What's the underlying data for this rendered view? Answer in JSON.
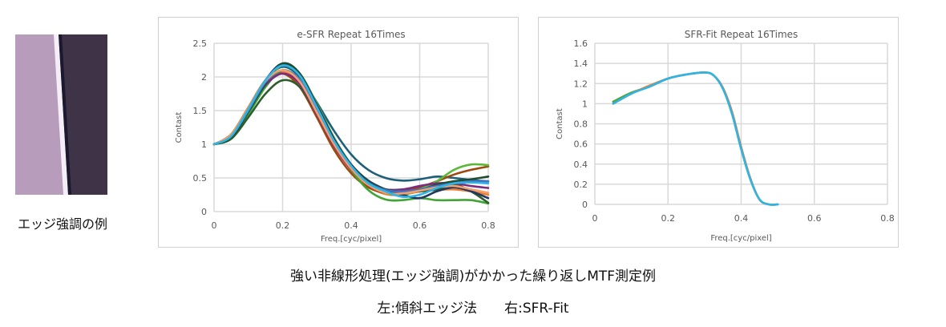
{
  "sample": {
    "label": "エッジ強調の例",
    "colors": {
      "light": "#b79dbb",
      "dark": "#3e3347",
      "edge": "#f4eef6"
    }
  },
  "captions": {
    "line1": "強い非線形処理(エッジ強調)がかかった繰り返しMTF測定例",
    "line2": "左:傾斜エッジ法　　右:SFR-Fit"
  },
  "chart_data": [
    {
      "type": "line",
      "title": "e-SFR Repeat 16Times",
      "xlabel": "Freq.[cyc/pixel]",
      "ylabel": "Contast",
      "xlim": [
        0,
        0.8
      ],
      "ylim": [
        0,
        2.5
      ],
      "xticks": [
        "0",
        "0.2",
        "0.4",
        "0.6",
        "0.8"
      ],
      "yticks": [
        "0",
        "0.5",
        "1",
        "1.5",
        "2",
        "2.5"
      ],
      "grid": true,
      "x": [
        0,
        0.05,
        0.1,
        0.15,
        0.2,
        0.25,
        0.3,
        0.35,
        0.4,
        0.45,
        0.5,
        0.55,
        0.6,
        0.65,
        0.7,
        0.75,
        0.8
      ],
      "series": [
        {
          "color": "#1f5f7a",
          "values": [
            1,
            1.12,
            1.5,
            1.95,
            2.15,
            2.0,
            1.62,
            1.2,
            0.85,
            0.62,
            0.5,
            0.46,
            0.48,
            0.52,
            0.5,
            0.47,
            0.45
          ]
        },
        {
          "color": "#ed7d31",
          "values": [
            1,
            1.15,
            1.55,
            1.95,
            2.08,
            1.9,
            1.45,
            0.98,
            0.62,
            0.38,
            0.26,
            0.25,
            0.3,
            0.32,
            0.33,
            0.3,
            0.25
          ]
        },
        {
          "color": "#9e480e",
          "values": [
            1,
            1.13,
            1.52,
            1.93,
            2.05,
            1.85,
            1.4,
            0.92,
            0.57,
            0.36,
            0.28,
            0.3,
            0.36,
            0.45,
            0.55,
            0.62,
            0.67
          ]
        },
        {
          "color": "#5cb83a",
          "values": [
            1,
            1.1,
            1.45,
            1.88,
            2.18,
            2.05,
            1.6,
            1.1,
            0.7,
            0.42,
            0.28,
            0.25,
            0.33,
            0.45,
            0.62,
            0.7,
            0.69
          ]
        },
        {
          "color": "#3fa535",
          "values": [
            1,
            1.1,
            1.45,
            1.85,
            2.1,
            1.95,
            1.5,
            1.0,
            0.62,
            0.32,
            0.18,
            0.17,
            0.2,
            0.17,
            0.17,
            0.17,
            0.12
          ]
        },
        {
          "color": "#2e5f2a",
          "values": [
            1,
            1.08,
            1.4,
            1.75,
            1.95,
            1.85,
            1.45,
            1.0,
            0.65,
            0.45,
            0.33,
            0.3,
            0.3,
            0.33,
            0.4,
            0.3,
            0.13
          ]
        },
        {
          "color": "#7e2a7e",
          "values": [
            1,
            1.12,
            1.5,
            1.88,
            2.05,
            1.9,
            1.45,
            0.98,
            0.63,
            0.42,
            0.33,
            0.33,
            0.38,
            0.42,
            0.42,
            0.38,
            0.35
          ]
        },
        {
          "color": "#203864",
          "values": [
            1,
            1.12,
            1.5,
            1.95,
            2.2,
            2.05,
            1.58,
            1.08,
            0.7,
            0.46,
            0.33,
            0.25,
            0.2,
            0.3,
            0.36,
            0.3,
            0.2
          ]
        },
        {
          "color": "#1d4d2e",
          "values": [
            1,
            1.1,
            1.48,
            1.9,
            2.2,
            2.05,
            1.55,
            1.05,
            0.68,
            0.45,
            0.33,
            0.3,
            0.32,
            0.4,
            0.45,
            0.48,
            0.52
          ]
        },
        {
          "color": "#4472c4",
          "values": [
            1,
            1.12,
            1.5,
            1.92,
            2.1,
            1.95,
            1.5,
            1.02,
            0.66,
            0.43,
            0.32,
            0.3,
            0.33,
            0.38,
            0.42,
            0.45,
            0.45
          ]
        },
        {
          "color": "#f4a070",
          "values": [
            1,
            1.14,
            1.53,
            1.94,
            2.1,
            1.93,
            1.47,
            1.0,
            0.64,
            0.4,
            0.28,
            0.27,
            0.31,
            0.36,
            0.38,
            0.33,
            0.28
          ]
        },
        {
          "color": "#2eb4e6",
          "values": [
            1,
            1.12,
            1.52,
            1.95,
            2.17,
            2.02,
            1.55,
            1.05,
            0.68,
            0.42,
            0.3,
            0.22,
            0.25,
            0.35,
            0.42,
            0.43,
            0.42
          ]
        }
      ]
    },
    {
      "type": "line",
      "title": "SFR-Fit Repeat 16Times",
      "xlabel": "Freq.[cyc/pixel]",
      "ylabel": "Contast",
      "xlim": [
        0,
        0.8
      ],
      "ylim": [
        0,
        1.6
      ],
      "xticks": [
        "0",
        "0.2",
        "0.4",
        "0.6",
        "0.8"
      ],
      "yticks": [
        "0",
        "0.2",
        "0.4",
        "0.6",
        "0.8",
        "1",
        "1.2",
        "1.4",
        "1.6"
      ],
      "grid": true,
      "x": [
        0.05,
        0.1,
        0.15,
        0.2,
        0.25,
        0.3,
        0.325,
        0.35,
        0.375,
        0.4,
        0.425,
        0.45,
        0.475,
        0.5
      ],
      "series": [
        {
          "color": "#4aa832",
          "values": [
            1.02,
            1.11,
            1.17,
            1.25,
            1.29,
            1.31,
            1.28,
            1.15,
            0.9,
            0.55,
            0.25,
            0.05,
            0.0,
            0.0
          ]
        },
        {
          "color": "#ed7d31",
          "values": [
            1.0,
            1.1,
            1.18,
            1.25,
            1.29,
            1.31,
            1.28,
            1.16,
            0.92,
            0.57,
            0.26,
            0.05,
            0.0,
            0.0
          ]
        },
        {
          "color": "#2eb4e6",
          "values": [
            1.0,
            1.1,
            1.17,
            1.25,
            1.29,
            1.31,
            1.28,
            1.15,
            0.9,
            0.55,
            0.25,
            0.05,
            0.0,
            0.0
          ]
        }
      ]
    }
  ]
}
